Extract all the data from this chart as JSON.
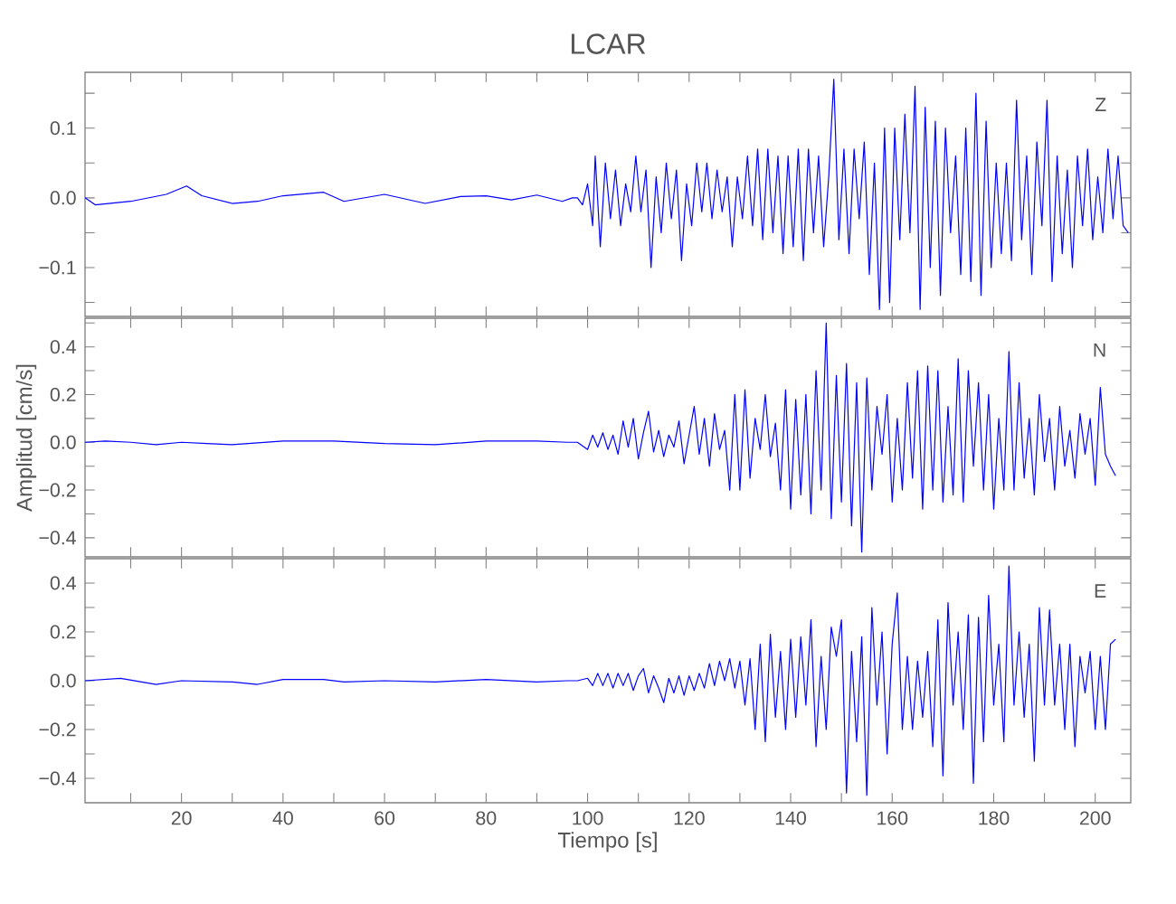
{
  "chart_data": [
    {
      "type": "line",
      "title": "LCAR",
      "annotations": [
        "Z"
      ],
      "xlim": [
        1,
        207
      ],
      "ylim": [
        -0.17,
        0.18
      ],
      "tick_labels": "y",
      "xticks": [
        {
          "value": 10,
          "label": null
        },
        20,
        {
          "value": 30,
          "label": null
        },
        40,
        {
          "value": 50,
          "label": null
        },
        60,
        {
          "value": 70,
          "label": null
        },
        80,
        {
          "value": 90,
          "label": null
        },
        100,
        {
          "value": 110,
          "label": null
        },
        120,
        {
          "value": 130,
          "label": null
        },
        140,
        {
          "value": 150,
          "label": null
        },
        160,
        {
          "value": 170,
          "label": null
        },
        180,
        {
          "value": 190,
          "label": null
        },
        200
      ],
      "yticks": [
        {
          "value": -0.15,
          "label": null
        },
        {
          "value": -0.1,
          "label": "−0.1"
        },
        {
          "value": -0.05,
          "label": null
        },
        {
          "value": 0,
          "label": "0.0"
        },
        {
          "value": 0.05,
          "label": null
        },
        {
          "value": 0.1,
          "label": "0.1"
        },
        {
          "value": 0.15,
          "label": null
        }
      ],
      "series": [
        {
          "color": "#0000ff",
          "x": [
            1,
            3,
            10,
            17,
            21,
            24,
            30,
            35,
            40,
            48,
            52,
            60,
            68,
            75,
            80,
            85,
            90,
            95,
            97,
            98,
            99,
            100,
            101,
            101.5,
            102.5,
            103.5,
            104.5,
            105.5,
            106.5,
            107.5,
            108.5,
            109.5,
            110.5,
            111.5,
            112.5,
            113.5,
            114.5,
            115.5,
            116.5,
            117.5,
            118.5,
            119.5,
            120.5,
            121.5,
            122.5,
            123.5,
            124.5,
            125.5,
            126.5,
            127.5,
            128.5,
            129.5,
            130.5,
            131.5,
            132.5,
            133.5,
            134.5,
            135.5,
            136.5,
            137.5,
            138.5,
            139.5,
            140.5,
            141.5,
            142.5,
            143.5,
            144.5,
            145.5,
            146.5,
            147.5,
            148.5,
            149.5,
            150.5,
            151.5,
            152.5,
            153.5,
            154.5,
            155.5,
            156.5,
            157.5,
            158.5,
            159.5,
            160.5,
            161.5,
            162.5,
            163.5,
            164.5,
            165.5,
            166.5,
            167.5,
            168.5,
            169.5,
            170.5,
            171.5,
            172.5,
            173.5,
            174.5,
            175.5,
            176.5,
            177.5,
            178.5,
            179.5,
            180.5,
            181.5,
            182.5,
            183.5,
            184.5,
            185.5,
            186.5,
            187.5,
            188.5,
            189.5,
            190.5,
            191.5,
            192.5,
            193.5,
            194.5,
            195.5,
            196.5,
            197.5,
            198.5,
            199.5,
            200.5,
            201.5,
            202.5,
            203.5,
            204.5,
            205.5,
            206.5
          ],
          "values": [
            0,
            -0.01,
            -0.005,
            0.005,
            0.017,
            0.003,
            -0.008,
            -0.005,
            0.003,
            0.008,
            -0.005,
            0.005,
            -0.008,
            0.002,
            0.003,
            -0.003,
            0.004,
            -0.005,
            0,
            0,
            -0.01,
            0.02,
            -0.04,
            0.06,
            -0.07,
            0.05,
            -0.03,
            0.04,
            -0.04,
            0.02,
            -0.02,
            0.06,
            -0.02,
            0.04,
            -0.1,
            0.03,
            -0.05,
            0.05,
            -0.03,
            0.04,
            -0.09,
            0.02,
            -0.04,
            0.05,
            -0.02,
            0.05,
            -0.03,
            0.04,
            -0.02,
            0.03,
            -0.07,
            0.03,
            -0.03,
            0.06,
            -0.04,
            0.07,
            -0.06,
            0.07,
            -0.05,
            0.06,
            -0.08,
            0.06,
            -0.07,
            0.07,
            -0.09,
            0.07,
            -0.05,
            0.06,
            -0.07,
            0.03,
            0.17,
            -0.06,
            0.07,
            -0.08,
            0.07,
            -0.03,
            0.08,
            -0.11,
            0.05,
            -0.16,
            0.1,
            -0.15,
            0.1,
            -0.06,
            0.12,
            -0.05,
            0.16,
            -0.16,
            0.13,
            -0.1,
            0.11,
            -0.14,
            0.1,
            -0.05,
            0.06,
            -0.11,
            0.1,
            -0.12,
            0.15,
            -0.14,
            0.11,
            -0.1,
            0.05,
            -0.08,
            0.05,
            -0.09,
            0.14,
            -0.06,
            0.06,
            -0.11,
            0.08,
            -0.04,
            0.14,
            -0.12,
            0.06,
            -0.08,
            0.04,
            -0.1,
            0.06,
            -0.04,
            0.07,
            -0.06,
            0.03,
            -0.05,
            0.07,
            -0.03,
            0.06,
            -0.04,
            -0.05
          ]
        }
      ]
    },
    {
      "type": "line",
      "ylabel": "Amplitud [cm/s]",
      "annotations": [
        "N"
      ],
      "xlim": [
        1,
        207
      ],
      "ylim": [
        -0.48,
        0.52
      ],
      "tick_labels": "y",
      "xticks": [
        {
          "value": 10,
          "label": null
        },
        20,
        {
          "value": 30,
          "label": null
        },
        40,
        {
          "value": 50,
          "label": null
        },
        60,
        {
          "value": 70,
          "label": null
        },
        80,
        {
          "value": 90,
          "label": null
        },
        100,
        {
          "value": 110,
          "label": null
        },
        120,
        {
          "value": 130,
          "label": null
        },
        140,
        {
          "value": 150,
          "label": null
        },
        160,
        {
          "value": 170,
          "label": null
        },
        180,
        {
          "value": 190,
          "label": null
        },
        200
      ],
      "yticks": [
        {
          "value": -0.4,
          "label": "−0.4"
        },
        {
          "value": -0.3,
          "label": null
        },
        {
          "value": -0.2,
          "label": "−0.2"
        },
        {
          "value": -0.1,
          "label": null
        },
        {
          "value": 0,
          "label": "0.0"
        },
        {
          "value": 0.1,
          "label": null
        },
        {
          "value": 0.2,
          "label": "0.2"
        },
        {
          "value": 0.3,
          "label": null
        },
        {
          "value": 0.4,
          "label": "0.4"
        },
        {
          "value": 0.5,
          "label": null
        }
      ],
      "series": [
        {
          "color": "#0000ff",
          "x": [
            1,
            5,
            10,
            15,
            20,
            25,
            30,
            40,
            50,
            60,
            70,
            80,
            90,
            96,
            98,
            100,
            101,
            102,
            103,
            104,
            105,
            106,
            107,
            108,
            109,
            110,
            111,
            112,
            113,
            114,
            115,
            116,
            117,
            118,
            119,
            120,
            121,
            122,
            123,
            124,
            125,
            126,
            127,
            128,
            129,
            130,
            131,
            132,
            133,
            134,
            135,
            136,
            137,
            138,
            139,
            140,
            141,
            142,
            143,
            144,
            145,
            146,
            147,
            148,
            149,
            150,
            151,
            152,
            153,
            154,
            155,
            156,
            157,
            158,
            159,
            160,
            161,
            162,
            163,
            164,
            165,
            166,
            167,
            168,
            169,
            170,
            171,
            172,
            173,
            174,
            175,
            176,
            177,
            178,
            179,
            180,
            181,
            182,
            183,
            184,
            185,
            186,
            187,
            188,
            189,
            190,
            191,
            192,
            193,
            194,
            195,
            196,
            197,
            198,
            199,
            200,
            201,
            202,
            203,
            204
          ],
          "values": [
            0,
            0.005,
            0,
            -0.01,
            0,
            -0.005,
            -0.01,
            0.005,
            0.005,
            -0.005,
            -0.01,
            0.005,
            0.005,
            0,
            0,
            -0.03,
            0.03,
            -0.02,
            0.04,
            -0.03,
            0.03,
            -0.05,
            0.09,
            -0.02,
            0.1,
            -0.07,
            0.04,
            0.13,
            -0.04,
            0.05,
            -0.06,
            0.03,
            -0.02,
            0.09,
            -0.09,
            0.03,
            0.15,
            -0.05,
            0.1,
            -0.1,
            0.12,
            -0.03,
            0.05,
            -0.2,
            0.2,
            -0.2,
            0.22,
            -0.15,
            0.1,
            -0.03,
            0.2,
            -0.06,
            0.08,
            -0.2,
            0.22,
            -0.28,
            0.18,
            -0.22,
            0.2,
            -0.3,
            0.3,
            -0.2,
            0.5,
            -0.32,
            0.28,
            -0.25,
            0.33,
            -0.35,
            0.25,
            -0.46,
            0.27,
            -0.2,
            0.15,
            -0.05,
            0.2,
            -0.25,
            0.1,
            -0.2,
            0.25,
            -0.15,
            0.3,
            -0.28,
            0.32,
            -0.2,
            0.3,
            -0.25,
            0.15,
            -0.22,
            0.35,
            -0.25,
            0.3,
            -0.1,
            0.25,
            -0.2,
            0.2,
            -0.28,
            0.1,
            -0.2,
            0.38,
            -0.2,
            0.25,
            -0.15,
            0.1,
            -0.22,
            0.2,
            -0.08,
            0.1,
            -0.2,
            0.15,
            -0.1,
            0.05,
            -0.15,
            0.12,
            -0.05,
            0.1,
            -0.18,
            0.23,
            -0.05,
            -0.1,
            -0.14
          ]
        }
      ]
    },
    {
      "type": "line",
      "xlabel": "Tiempo [s]",
      "annotations": [
        "E"
      ],
      "xlim": [
        1,
        207
      ],
      "ylim": [
        -0.5,
        0.5
      ],
      "xticks": [
        {
          "value": 10,
          "label": null
        },
        20,
        {
          "value": 30,
          "label": null
        },
        40,
        {
          "value": 50,
          "label": null
        },
        60,
        {
          "value": 70,
          "label": null
        },
        80,
        {
          "value": 90,
          "label": null
        },
        100,
        {
          "value": 110,
          "label": null
        },
        120,
        {
          "value": 130,
          "label": null
        },
        140,
        {
          "value": 150,
          "label": null
        },
        160,
        {
          "value": 170,
          "label": null
        },
        180,
        {
          "value": 190,
          "label": null
        },
        200
      ],
      "yticks": [
        {
          "value": -0.4,
          "label": "−0.4"
        },
        {
          "value": -0.3,
          "label": null
        },
        {
          "value": -0.2,
          "label": "−0.2"
        },
        {
          "value": -0.1,
          "label": null
        },
        {
          "value": 0,
          "label": "0.0"
        },
        {
          "value": 0.1,
          "label": null
        },
        {
          "value": 0.2,
          "label": "0.2"
        },
        {
          "value": 0.3,
          "label": null
        },
        {
          "value": 0.4,
          "label": "0.4"
        }
      ],
      "series": [
        {
          "color": "#0000ff",
          "x": [
            1,
            8,
            15,
            20,
            30,
            35,
            40,
            48,
            52,
            60,
            70,
            80,
            90,
            96,
            98,
            100,
            101,
            102,
            103,
            104,
            105,
            106,
            107,
            108,
            109,
            110,
            111,
            112,
            113,
            114,
            115,
            116,
            117,
            118,
            119,
            120,
            121,
            122,
            123,
            124,
            125,
            126,
            127,
            128,
            129,
            130,
            131,
            132,
            133,
            134,
            135,
            136,
            137,
            138,
            139,
            140,
            141,
            142,
            143,
            144,
            145,
            146,
            147,
            148,
            149,
            150,
            151,
            152,
            153,
            154,
            155,
            156,
            157,
            158,
            159,
            160,
            161,
            162,
            163,
            164,
            165,
            166,
            167,
            168,
            169,
            170,
            171,
            172,
            173,
            174,
            175,
            176,
            177,
            178,
            179,
            180,
            181,
            182,
            183,
            184,
            185,
            186,
            187,
            188,
            189,
            190,
            191,
            192,
            193,
            194,
            195,
            196,
            197,
            198,
            199,
            200,
            201,
            202,
            203,
            204
          ],
          "values": [
            0,
            0.01,
            -0.015,
            0,
            -0.005,
            -0.015,
            0.005,
            0.005,
            -0.005,
            0,
            -0.005,
            0.005,
            -0.005,
            0,
            0,
            0.01,
            -0.02,
            0.03,
            -0.02,
            0.03,
            -0.03,
            0.03,
            -0.02,
            0.03,
            -0.04,
            0.02,
            0.05,
            -0.05,
            0.02,
            -0.03,
            -0.09,
            0.01,
            -0.05,
            0.02,
            -0.06,
            0.02,
            -0.04,
            0.03,
            -0.03,
            0.07,
            -0.02,
            0.08,
            0,
            0.09,
            -0.03,
            0.08,
            -0.1,
            0.09,
            -0.2,
            0.15,
            -0.25,
            0.19,
            -0.15,
            0.12,
            -0.2,
            0.17,
            -0.15,
            0.18,
            -0.1,
            0.25,
            -0.27,
            0.1,
            -0.2,
            0.22,
            0.1,
            0.25,
            -0.46,
            0.12,
            -0.25,
            0.18,
            -0.47,
            0.3,
            -0.1,
            0.2,
            -0.3,
            0.15,
            0.36,
            -0.2,
            0.1,
            -0.2,
            0.08,
            -0.15,
            0.12,
            -0.27,
            0.25,
            -0.39,
            0.32,
            -0.1,
            0.2,
            -0.2,
            0.27,
            -0.42,
            0.26,
            -0.25,
            0.35,
            -0.1,
            0.15,
            -0.25,
            0.47,
            -0.1,
            0.2,
            -0.15,
            0.15,
            -0.33,
            0.3,
            -0.1,
            0.29,
            -0.1,
            0.15,
            -0.2,
            0.15,
            -0.27,
            0.1,
            -0.05,
            0.12,
            -0.2,
            0.1,
            -0.2,
            0.15,
            0.17
          ]
        }
      ]
    }
  ]
}
